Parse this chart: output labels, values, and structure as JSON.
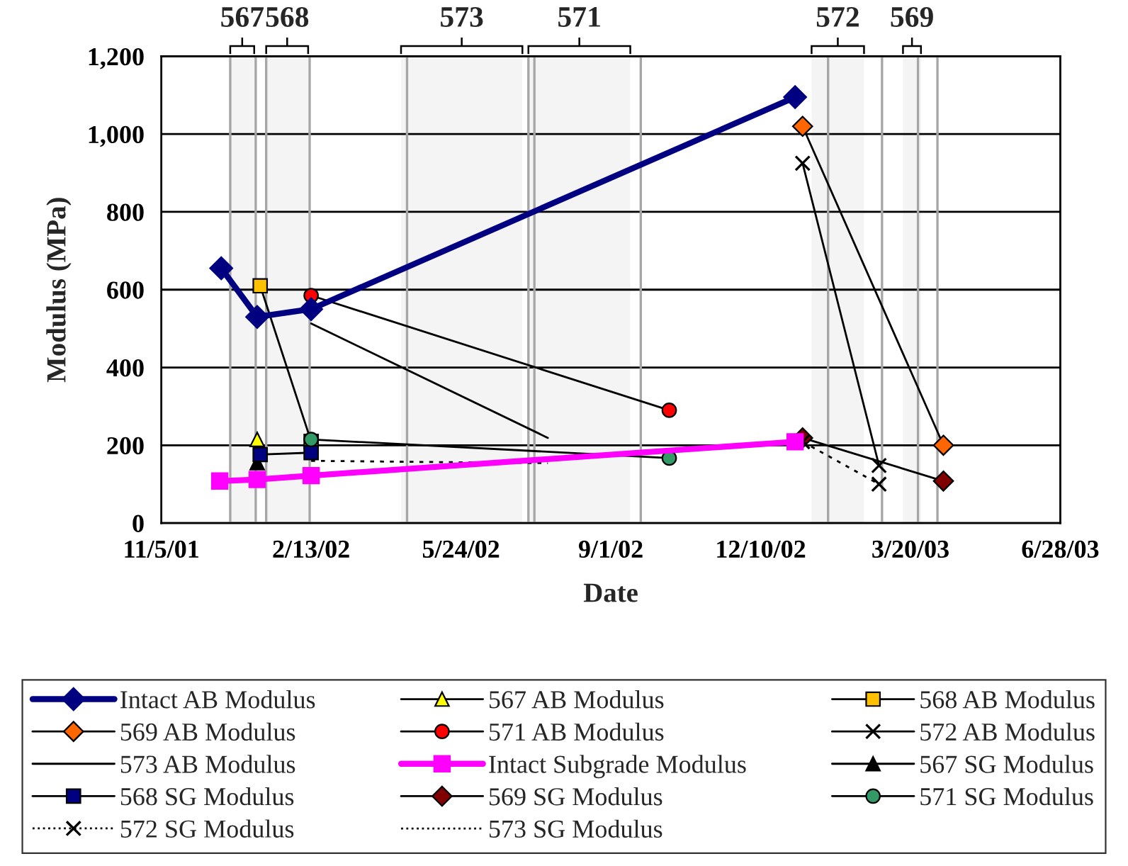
{
  "chart_data": {
    "type": "line",
    "xlabel": "Date",
    "ylabel": "Modulus (MPa)",
    "xlim": [
      "2001-11-05",
      "2003-06-28"
    ],
    "xticks": [
      {
        "value": "2001-11-05",
        "label": "11/5/01"
      },
      {
        "value": "2002-02-13",
        "label": "2/13/02"
      },
      {
        "value": "2002-05-24",
        "label": "5/24/02"
      },
      {
        "value": "2002-09-01",
        "label": "9/1/02"
      },
      {
        "value": "2002-12-10",
        "label": "12/10/02"
      },
      {
        "value": "2003-03-20",
        "label": "3/20/03"
      },
      {
        "value": "2003-06-28",
        "label": "6/28/03"
      }
    ],
    "ylim": [
      0,
      1200
    ],
    "yticks": [
      0,
      200,
      400,
      600,
      800,
      {
        "value": 1000,
        "label": "1,000"
      },
      {
        "value": 1200,
        "label": "1,200"
      }
    ],
    "grid": "y",
    "legend": "bottom",
    "series": [
      {
        "name": "Intact AB Modulus",
        "color": "#000080",
        "marker": "diamond",
        "line_style": "solid",
        "x": [
          "2001-12-15",
          "2002-01-08",
          "2002-02-13",
          "2003-01-02"
        ],
        "values": [
          655,
          530,
          550,
          1095
        ]
      },
      {
        "name": "567 AB Modulus",
        "color": "#ffff00",
        "marker": "triangle",
        "line_style": "solid",
        "x": [
          "2002-01-08"
        ],
        "values": [
          215
        ]
      },
      {
        "name": "568 AB Modulus",
        "color": "#ffc000",
        "marker": "square",
        "line_style": "solid",
        "x": [
          "2002-01-10",
          "2002-02-13"
        ],
        "values": [
          610,
          210
        ]
      },
      {
        "name": "569 AB Modulus",
        "color": "#ff6600",
        "marker": "diamond",
        "line_style": "solid",
        "x": [
          "2003-01-07",
          "2003-04-11"
        ],
        "values": [
          1020,
          200
        ]
      },
      {
        "name": "571 AB Modulus",
        "color": "#ff0000",
        "marker": "circle",
        "line_style": "solid",
        "x": [
          "2002-02-13",
          "2002-10-10"
        ],
        "values": [
          585,
          290
        ]
      },
      {
        "name": "572 AB Modulus",
        "color": "#000000",
        "marker": "cross",
        "line_style": "solid",
        "x": [
          "2003-01-07",
          "2003-02-27"
        ],
        "values": [
          925,
          148
        ]
      },
      {
        "name": "573 AB Modulus",
        "color": "#000000",
        "marker": "none",
        "line_style": "solid",
        "x": [
          "2002-02-13",
          "2002-07-21"
        ],
        "values": [
          513,
          219
        ]
      },
      {
        "name": "Intact Subgrade Modulus",
        "color": "#ff00ff",
        "marker": "square",
        "line_style": "solid",
        "x": [
          "2001-12-14",
          "2002-01-08",
          "2002-02-13",
          "2003-01-02"
        ],
        "values": [
          108,
          112,
          122,
          209
        ]
      },
      {
        "name": "567 SG Modulus",
        "color": "#000000",
        "marker": "triangle",
        "line_style": "solid",
        "x": [
          "2002-01-08"
        ],
        "values": [
          155
        ]
      },
      {
        "name": "568 SG Modulus",
        "color": "#000080",
        "marker": "square",
        "line_style": "solid",
        "x": [
          "2002-01-10",
          "2002-02-13"
        ],
        "values": [
          176,
          181
        ]
      },
      {
        "name": "569 SG Modulus",
        "color": "#800000",
        "marker": "diamond",
        "line_style": "solid",
        "x": [
          "2003-01-07",
          "2003-04-11"
        ],
        "values": [
          219,
          108
        ]
      },
      {
        "name": "571 SG Modulus",
        "color": "#339966",
        "marker": "circle",
        "line_style": "solid",
        "x": [
          "2002-02-13",
          "2002-10-10"
        ],
        "values": [
          215,
          167
        ]
      },
      {
        "name": "572 SG Modulus",
        "color": "#000000",
        "marker": "cross",
        "line_style": "dotted",
        "x": [
          "2003-01-07",
          "2003-02-27"
        ],
        "values": [
          209,
          100
        ]
      },
      {
        "name": "573 SG Modulus",
        "color": "#000000",
        "marker": "none",
        "line_style": "dotted",
        "x": [
          "2002-02-13",
          "2002-07-21"
        ],
        "values": [
          160,
          154
        ]
      }
    ],
    "bands": [
      {
        "axis": "x",
        "from": "2001-12-21",
        "to": "2002-01-06",
        "label": "567",
        "color": "#f4f4f4"
      },
      {
        "axis": "x",
        "from": "2002-01-14",
        "to": "2002-02-11",
        "label": "568",
        "color": "#f4f4f4"
      },
      {
        "axis": "x",
        "from": "2002-04-14",
        "to": "2002-07-04",
        "label": "573",
        "color": "#f4f4f4"
      },
      {
        "axis": "x",
        "from": "2002-07-08",
        "to": "2002-09-14",
        "label": "571",
        "color": "#f4f4f4"
      },
      {
        "axis": "x",
        "from": "2003-01-13",
        "to": "2003-02-17",
        "label": "572",
        "color": "#f4f4f4"
      },
      {
        "axis": "x",
        "from": "2003-03-15",
        "to": "2003-03-27",
        "label": "569",
        "color": "#f4f4f4"
      }
    ],
    "ref_lines": [
      {
        "axis": "x",
        "value": "2001-12-21",
        "color": "#a6a6a6"
      },
      {
        "axis": "x",
        "value": "2002-01-07",
        "color": "#a6a6a6"
      },
      {
        "axis": "x",
        "value": "2002-01-14",
        "color": "#a6a6a6"
      },
      {
        "axis": "x",
        "value": "2002-02-12",
        "color": "#a6a6a6"
      },
      {
        "axis": "x",
        "value": "2002-04-18",
        "color": "#a6a6a6"
      },
      {
        "axis": "x",
        "value": "2002-07-08",
        "color": "#a6a6a6"
      },
      {
        "axis": "x",
        "value": "2002-07-12",
        "color": "#a6a6a6"
      },
      {
        "axis": "x",
        "value": "2002-09-21",
        "color": "#a6a6a6"
      },
      {
        "axis": "x",
        "value": "2003-01-24",
        "color": "#a6a6a6"
      },
      {
        "axis": "x",
        "value": "2003-03-01",
        "color": "#a6a6a6"
      },
      {
        "axis": "x",
        "value": "2003-03-25",
        "color": "#a6a6a6"
      },
      {
        "axis": "x",
        "value": "2003-04-07",
        "color": "#a6a6a6"
      }
    ]
  }
}
